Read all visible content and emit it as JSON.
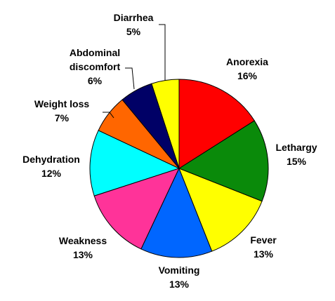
{
  "chart_data": {
    "type": "pie",
    "categories": [
      "Anorexia",
      "Lethargy",
      "Fever",
      "Vomiting",
      "Weakness",
      "Dehydration",
      "Weight loss",
      "Abdominal discomfort",
      "Diarrhea"
    ],
    "values": [
      16,
      15,
      13,
      13,
      13,
      12,
      7,
      6,
      5
    ],
    "value_labels": [
      "16%",
      "15%",
      "13%",
      "13%",
      "13%",
      "12%",
      "7%",
      "6%",
      "5%"
    ],
    "colors": [
      "#ff0000",
      "#0a8a0a",
      "#ffff00",
      "#0066ff",
      "#ff3399",
      "#00ffff",
      "#ff6600",
      "#000066",
      "#ffff00"
    ]
  }
}
